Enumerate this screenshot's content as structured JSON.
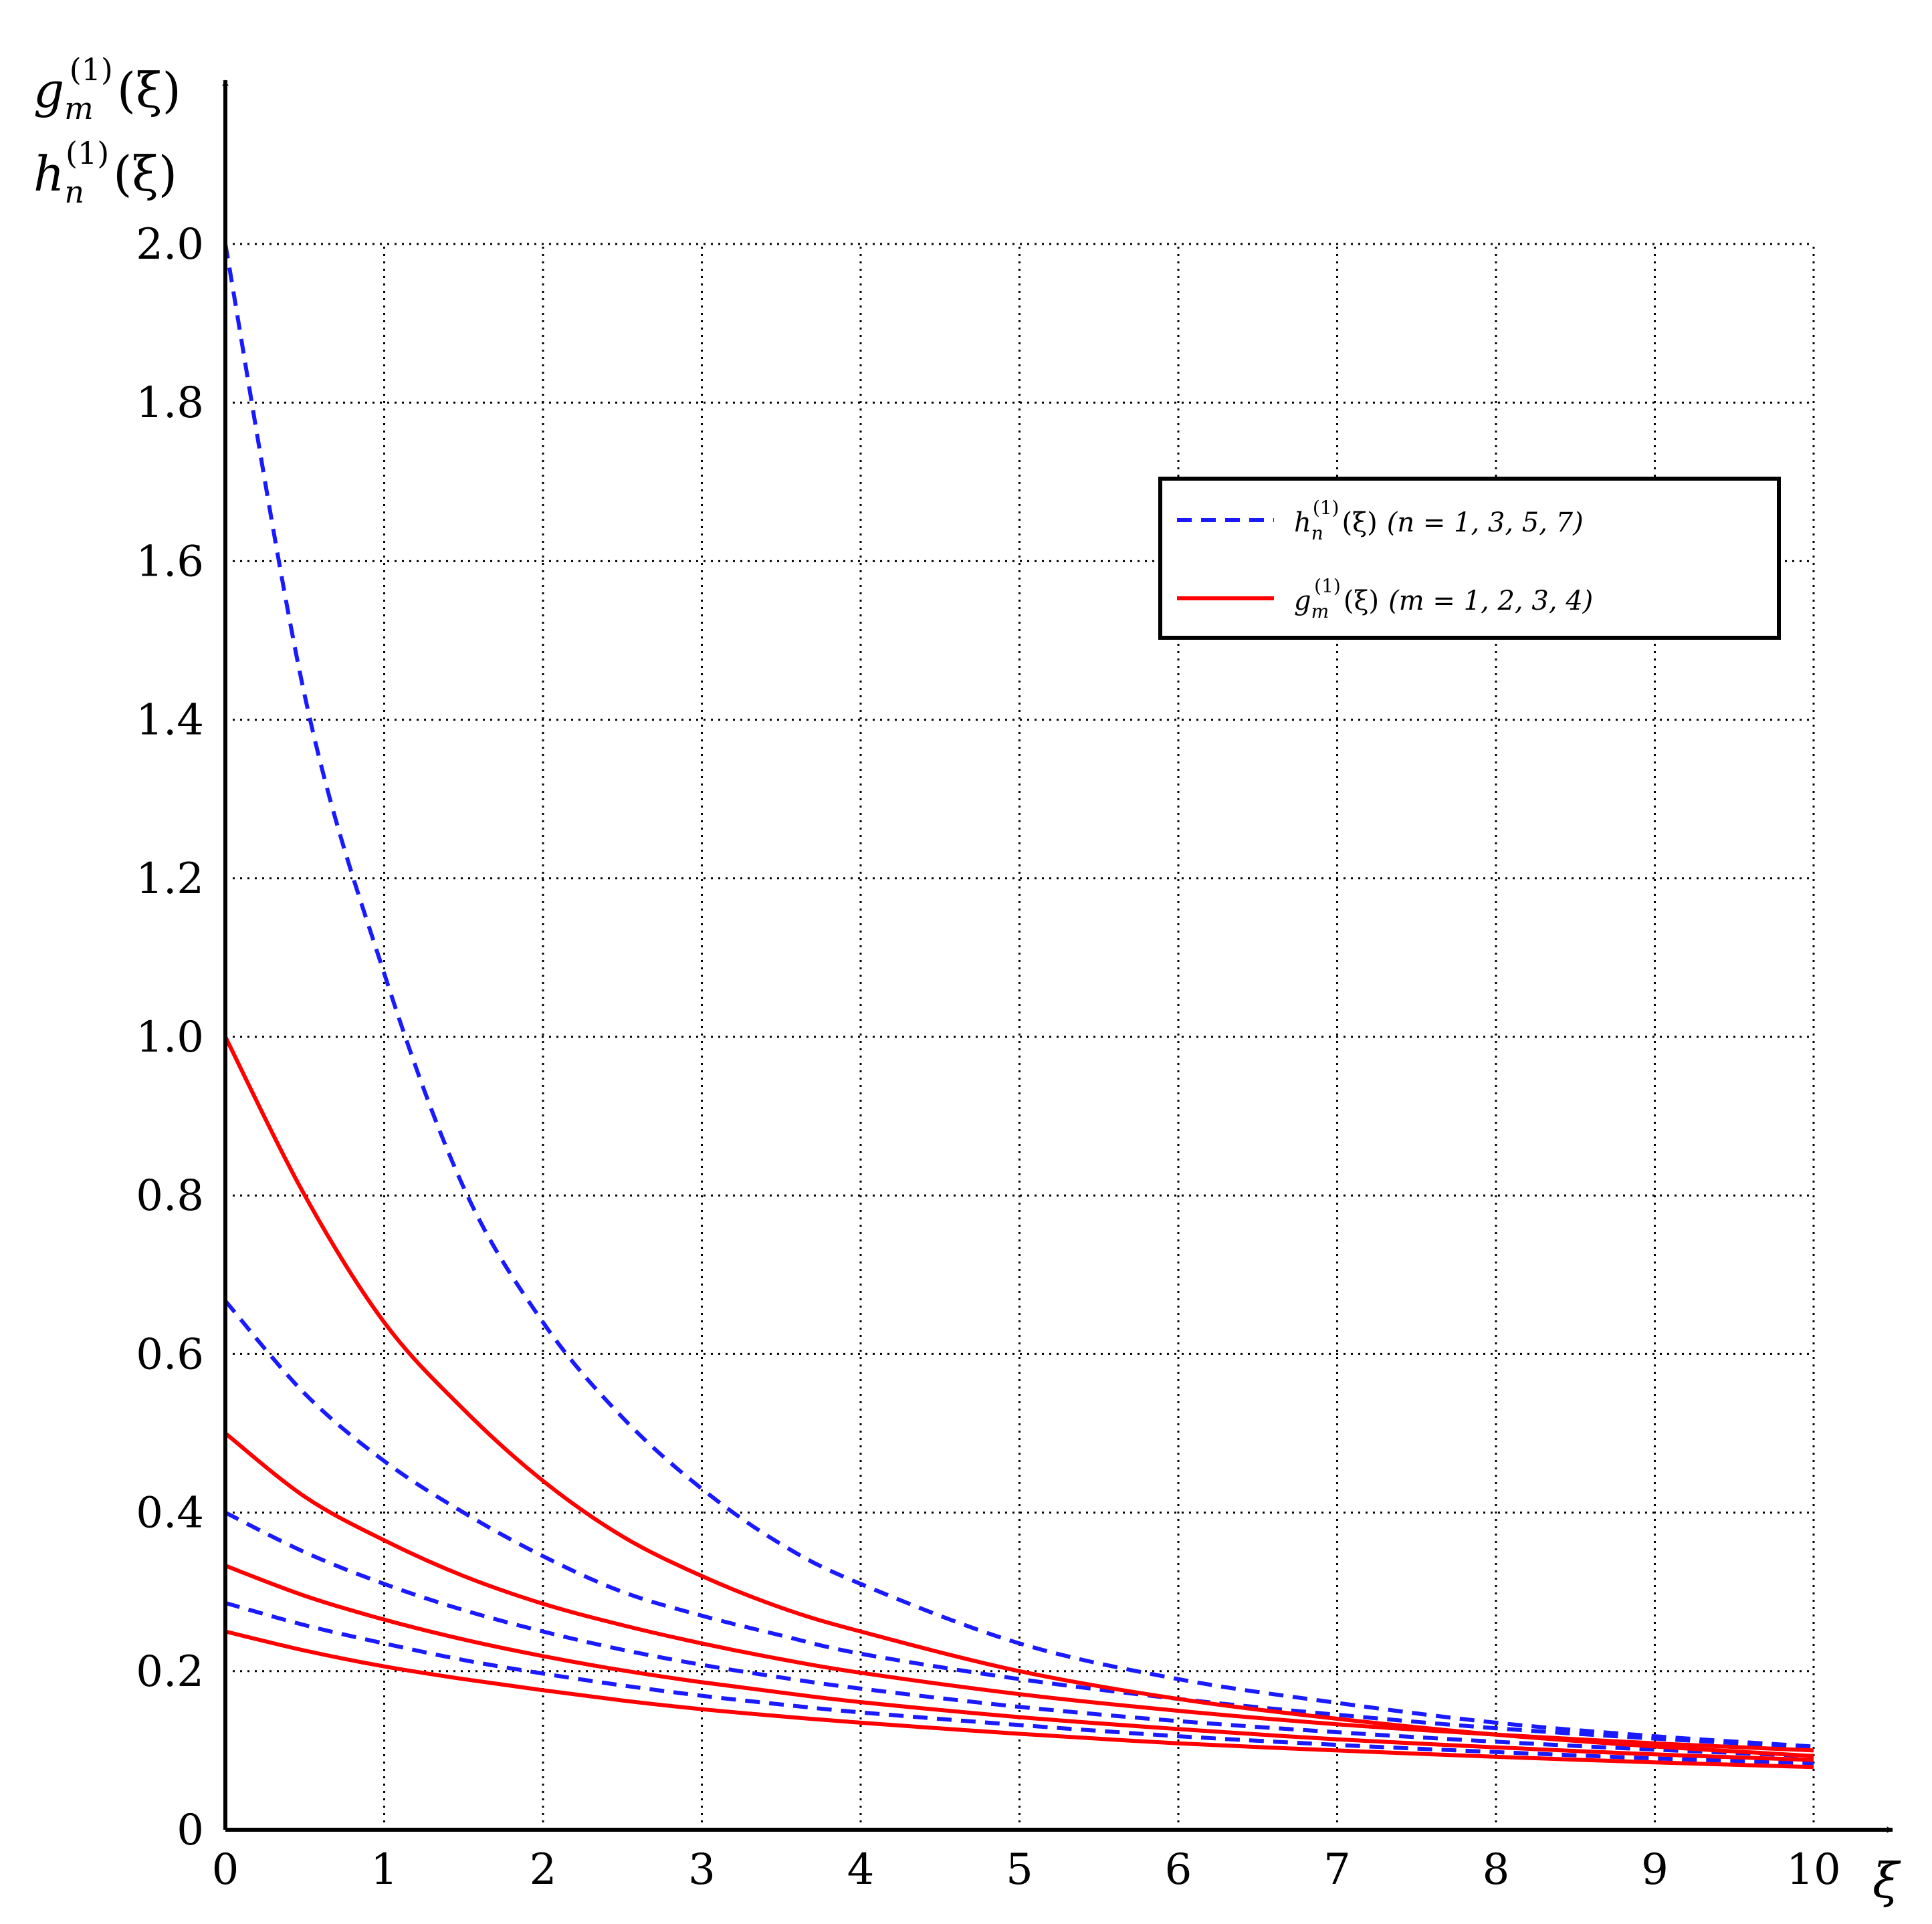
{
  "chart_data": {
    "type": "line",
    "xlabel": "ξ",
    "ylabel": [
      "g",
      "m",
      "(1)",
      "(ξ)",
      "h",
      "n",
      "(1)",
      "(ξ)"
    ],
    "xlim": [
      0,
      10
    ],
    "ylim": [
      0,
      2.0
    ],
    "grid": true,
    "legend_position": "top-right",
    "x_ticks": [
      "0",
      "1",
      "2",
      "3",
      "4",
      "5",
      "6",
      "7",
      "8",
      "9",
      "10"
    ],
    "y_ticks": [
      "0",
      "0.2",
      "0.4",
      "0.6",
      "0.8",
      "1.0",
      "1.2",
      "1.4",
      "1.6",
      "1.8",
      "2.0"
    ],
    "x": [
      0,
      0.5,
      1,
      1.5,
      2,
      2.5,
      3,
      3.5,
      4,
      5,
      6,
      7,
      8,
      9,
      10
    ],
    "series": [
      {
        "group": "h",
        "style": "dashed",
        "color": "#1a1aff",
        "values": [
          2.0,
          1.43,
          1.08,
          0.81,
          0.64,
          0.52,
          0.43,
          0.36,
          0.31,
          0.235,
          0.19,
          0.16,
          0.135,
          0.118,
          0.105
        ]
      },
      {
        "group": "h",
        "style": "dashed",
        "color": "#1a1aff",
        "values": [
          0.667,
          0.55,
          0.465,
          0.4,
          0.345,
          0.3,
          0.27,
          0.245,
          0.222,
          0.19,
          0.165,
          0.145,
          0.128,
          0.115,
          0.104
        ]
      },
      {
        "group": "h",
        "style": "dashed",
        "color": "#1a1aff",
        "values": [
          0.4,
          0.35,
          0.31,
          0.277,
          0.25,
          0.227,
          0.208,
          0.192,
          0.178,
          0.155,
          0.137,
          0.123,
          0.111,
          0.101,
          0.093
        ]
      },
      {
        "group": "h",
        "style": "dashed",
        "color": "#1a1aff",
        "values": [
          0.286,
          0.258,
          0.235,
          0.214,
          0.197,
          0.182,
          0.169,
          0.158,
          0.148,
          0.132,
          0.118,
          0.107,
          0.098,
          0.09,
          0.084
        ]
      },
      {
        "group": "g",
        "style": "solid",
        "color": "#ff0000",
        "values": [
          1.0,
          0.8,
          0.64,
          0.53,
          0.44,
          0.37,
          0.32,
          0.28,
          0.25,
          0.2,
          0.165,
          0.14,
          0.12,
          0.105,
          0.093
        ]
      },
      {
        "group": "g",
        "style": "solid",
        "color": "#ff0000",
        "values": [
          0.5,
          0.42,
          0.365,
          0.32,
          0.285,
          0.258,
          0.235,
          0.215,
          0.198,
          0.171,
          0.15,
          0.133,
          0.12,
          0.109,
          0.1
        ]
      },
      {
        "group": "g",
        "style": "solid",
        "color": "#ff0000",
        "values": [
          0.333,
          0.295,
          0.265,
          0.24,
          0.219,
          0.201,
          0.186,
          0.173,
          0.161,
          0.142,
          0.127,
          0.114,
          0.104,
          0.095,
          0.088
        ]
      },
      {
        "group": "g",
        "style": "solid",
        "color": "#ff0000",
        "values": [
          0.25,
          0.226,
          0.206,
          0.19,
          0.176,
          0.163,
          0.152,
          0.143,
          0.135,
          0.121,
          0.109,
          0.1,
          0.092,
          0.085,
          0.079
        ]
      }
    ],
    "legend": [
      {
        "group": "h",
        "style": "dashed",
        "color": "#1a1aff",
        "symbol": "h",
        "sub": "n",
        "sup": "(1)",
        "arg": "(ξ)",
        "condition": "(n = 1, 3, 5, 7)"
      },
      {
        "group": "g",
        "style": "solid",
        "color": "#ff0000",
        "symbol": "g",
        "sub": "m",
        "sup": "(1)",
        "arg": "(ξ)",
        "condition": "(m = 1, 2, 3, 4)"
      }
    ]
  }
}
